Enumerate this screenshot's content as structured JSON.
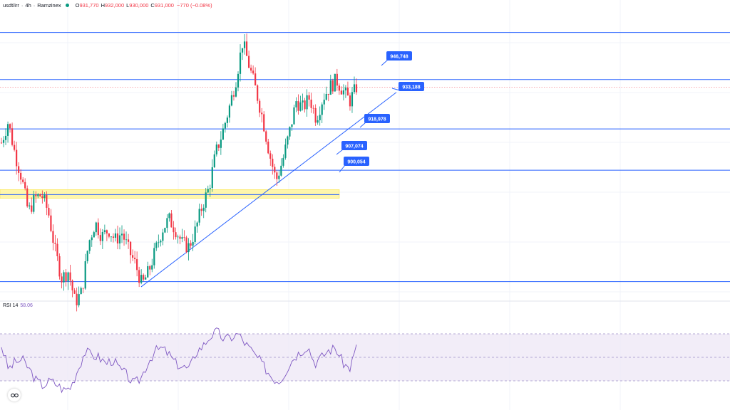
{
  "header": {
    "symbol": "usdt/irr",
    "separator": "·",
    "timeframe": "4h",
    "exchange": "Ramzinex",
    "ohlc": {
      "open_label": "O",
      "open": "931,770",
      "high_label": "H",
      "high": "932,000",
      "low_label": "L",
      "low": "930,000",
      "close_label": "C",
      "close": "931,000",
      "change": "−770 (−0.08%)"
    }
  },
  "rsi": {
    "label": "RSI 14",
    "value": "58.06"
  },
  "colors": {
    "up": "#089981",
    "down": "#f23645",
    "level_line": "#2962ff",
    "rsi_line": "#7e57c2",
    "rsi_band": "#ede7f6",
    "zone": "#fff59d"
  },
  "chart_data": {
    "type": "candlestick",
    "price_range": [
      870000,
      952000
    ],
    "horizontal_levels": [
      {
        "value": 946748,
        "label": "946,748"
      },
      {
        "value": 933188,
        "label": "933,188"
      },
      {
        "value": 918978,
        "label": "918,978"
      },
      {
        "value": 907074,
        "label": "907,074"
      },
      {
        "value": 900054,
        "label": "900,054"
      },
      {
        "value": 875000,
        "label": ""
      }
    ],
    "support_zone": [
      899000,
      901500
    ],
    "trendline": {
      "from_price": 873500,
      "to_price": 929500
    },
    "current_price": 931000,
    "close_path": [
      915000,
      921000,
      912000,
      905000,
      895000,
      899000,
      900000,
      895000,
      884000,
      876000,
      878000,
      869000,
      872000,
      886000,
      892000,
      888000,
      890000,
      887000,
      889000,
      884000,
      880000,
      874000,
      878000,
      884000,
      890000,
      893000,
      890000,
      886000,
      885000,
      890000,
      897000,
      902000,
      912000,
      918000,
      925000,
      933000,
      944000,
      937000,
      930000,
      922000,
      912000,
      904000,
      910000,
      918000,
      927000,
      925000,
      928000,
      922000,
      928000,
      931000,
      933000,
      930000,
      927000,
      931000
    ],
    "rsi_range": [
      10,
      90
    ],
    "rsi_levels": [
      70,
      50,
      30
    ],
    "rsi_path": [
      60,
      40,
      46,
      48,
      40,
      30,
      26,
      30,
      27,
      22,
      25,
      40,
      55,
      52,
      50,
      45,
      48,
      40,
      35,
      27,
      32,
      45,
      55,
      58,
      53,
      45,
      42,
      40,
      55,
      60,
      68,
      72,
      65,
      67,
      70,
      62,
      55,
      48,
      40,
      32,
      30,
      40,
      50,
      55,
      60,
      45,
      50,
      56,
      58,
      46,
      40,
      58
    ]
  }
}
